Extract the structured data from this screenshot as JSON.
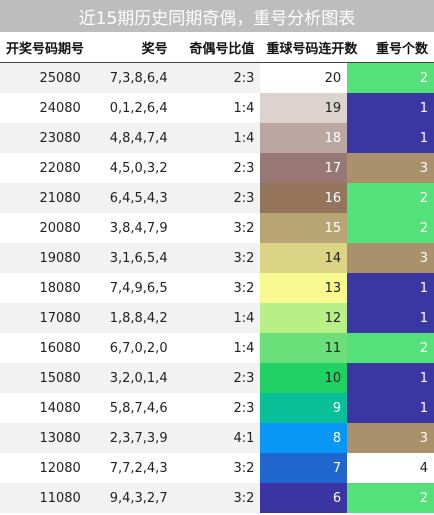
{
  "title": "近15期历史同期奇偶，重号分析图表",
  "columns": [
    "开奖号码期号",
    "奖号",
    "奇偶号比值",
    "重球号码连开数",
    "重号个数"
  ],
  "colors": {
    "odd_row": "#f2f2f2",
    "green": "#55e17a",
    "indigo": "#3a37a3",
    "tan": "#a8916b",
    "white": "#ffffff"
  },
  "rows": [
    {
      "period": "25080",
      "numbers": "7,3,8,6,4",
      "ratio": "2:3",
      "streak": "20",
      "streak_bg": "#ffffff",
      "streak_fg": "#222222",
      "repeat": "2",
      "repeat_bg": "#55e17a",
      "repeat_fg": "#ffffff"
    },
    {
      "period": "24080",
      "numbers": "0,1,2,6,4",
      "ratio": "1:4",
      "streak": "19",
      "streak_bg": "#dcd2d0",
      "streak_fg": "#222222",
      "repeat": "1",
      "repeat_bg": "#3a37a3",
      "repeat_fg": "#ffffff"
    },
    {
      "period": "23080",
      "numbers": "4,8,4,7,4",
      "ratio": "1:4",
      "streak": "18",
      "streak_bg": "#bba6a2",
      "streak_fg": "#ffffff",
      "repeat": "1",
      "repeat_bg": "#3a37a3",
      "repeat_fg": "#ffffff"
    },
    {
      "period": "22080",
      "numbers": "4,5,0,3,2",
      "ratio": "2:3",
      "streak": "17",
      "streak_bg": "#977874",
      "streak_fg": "#ffffff",
      "repeat": "3",
      "repeat_bg": "#a8916b",
      "repeat_fg": "#ffffff"
    },
    {
      "period": "21080",
      "numbers": "6,4,5,4,3",
      "ratio": "2:3",
      "streak": "16",
      "streak_bg": "#94755b",
      "streak_fg": "#ffffff",
      "repeat": "2",
      "repeat_bg": "#55e17a",
      "repeat_fg": "#ffffff"
    },
    {
      "period": "20080",
      "numbers": "3,8,4,7,9",
      "ratio": "3:2",
      "streak": "15",
      "streak_bg": "#b9a474",
      "streak_fg": "#ffffff",
      "repeat": "2",
      "repeat_bg": "#55e17a",
      "repeat_fg": "#ffffff"
    },
    {
      "period": "19080",
      "numbers": "3,1,6,5,4",
      "ratio": "3:2",
      "streak": "14",
      "streak_bg": "#dcd485",
      "streak_fg": "#222222",
      "repeat": "3",
      "repeat_bg": "#a8916b",
      "repeat_fg": "#ffffff"
    },
    {
      "period": "18080",
      "numbers": "7,4,9,6,5",
      "ratio": "3:2",
      "streak": "13",
      "streak_bg": "#f8f98f",
      "streak_fg": "#222222",
      "repeat": "1",
      "repeat_bg": "#3a37a3",
      "repeat_fg": "#ffffff"
    },
    {
      "period": "17080",
      "numbers": "1,8,8,4,2",
      "ratio": "1:4",
      "streak": "12",
      "streak_bg": "#b8ef86",
      "streak_fg": "#222222",
      "repeat": "1",
      "repeat_bg": "#3a37a3",
      "repeat_fg": "#ffffff"
    },
    {
      "period": "16080",
      "numbers": "6,7,0,2,0",
      "ratio": "1:4",
      "streak": "11",
      "streak_bg": "#6be07a",
      "streak_fg": "#222222",
      "repeat": "2",
      "repeat_bg": "#55e17a",
      "repeat_fg": "#ffffff"
    },
    {
      "period": "15080",
      "numbers": "3,2,0,1,4",
      "ratio": "2:3",
      "streak": "10",
      "streak_bg": "#22d164",
      "streak_fg": "#222222",
      "repeat": "1",
      "repeat_bg": "#3a37a3",
      "repeat_fg": "#ffffff"
    },
    {
      "period": "14080",
      "numbers": "5,8,7,4,6",
      "ratio": "2:3",
      "streak": "9",
      "streak_bg": "#08bf9a",
      "streak_fg": "#ffffff",
      "repeat": "1",
      "repeat_bg": "#3a37a3",
      "repeat_fg": "#ffffff"
    },
    {
      "period": "13080",
      "numbers": "2,3,7,3,9",
      "ratio": "4:1",
      "streak": "8",
      "streak_bg": "#0a96f5",
      "streak_fg": "#ffffff",
      "repeat": "3",
      "repeat_bg": "#a8916b",
      "repeat_fg": "#ffffff"
    },
    {
      "period": "12080",
      "numbers": "7,7,2,4,3",
      "ratio": "3:2",
      "streak": "7",
      "streak_bg": "#1f66cf",
      "streak_fg": "#ffffff",
      "repeat": "4",
      "repeat_bg": "#ffffff",
      "repeat_fg": "#222222"
    },
    {
      "period": "11080",
      "numbers": "9,4,3,2,7",
      "ratio": "3:2",
      "streak": "6",
      "streak_bg": "#3b35a4",
      "streak_fg": "#ffffff",
      "repeat": "2",
      "repeat_bg": "#55e17a",
      "repeat_fg": "#ffffff"
    }
  ]
}
